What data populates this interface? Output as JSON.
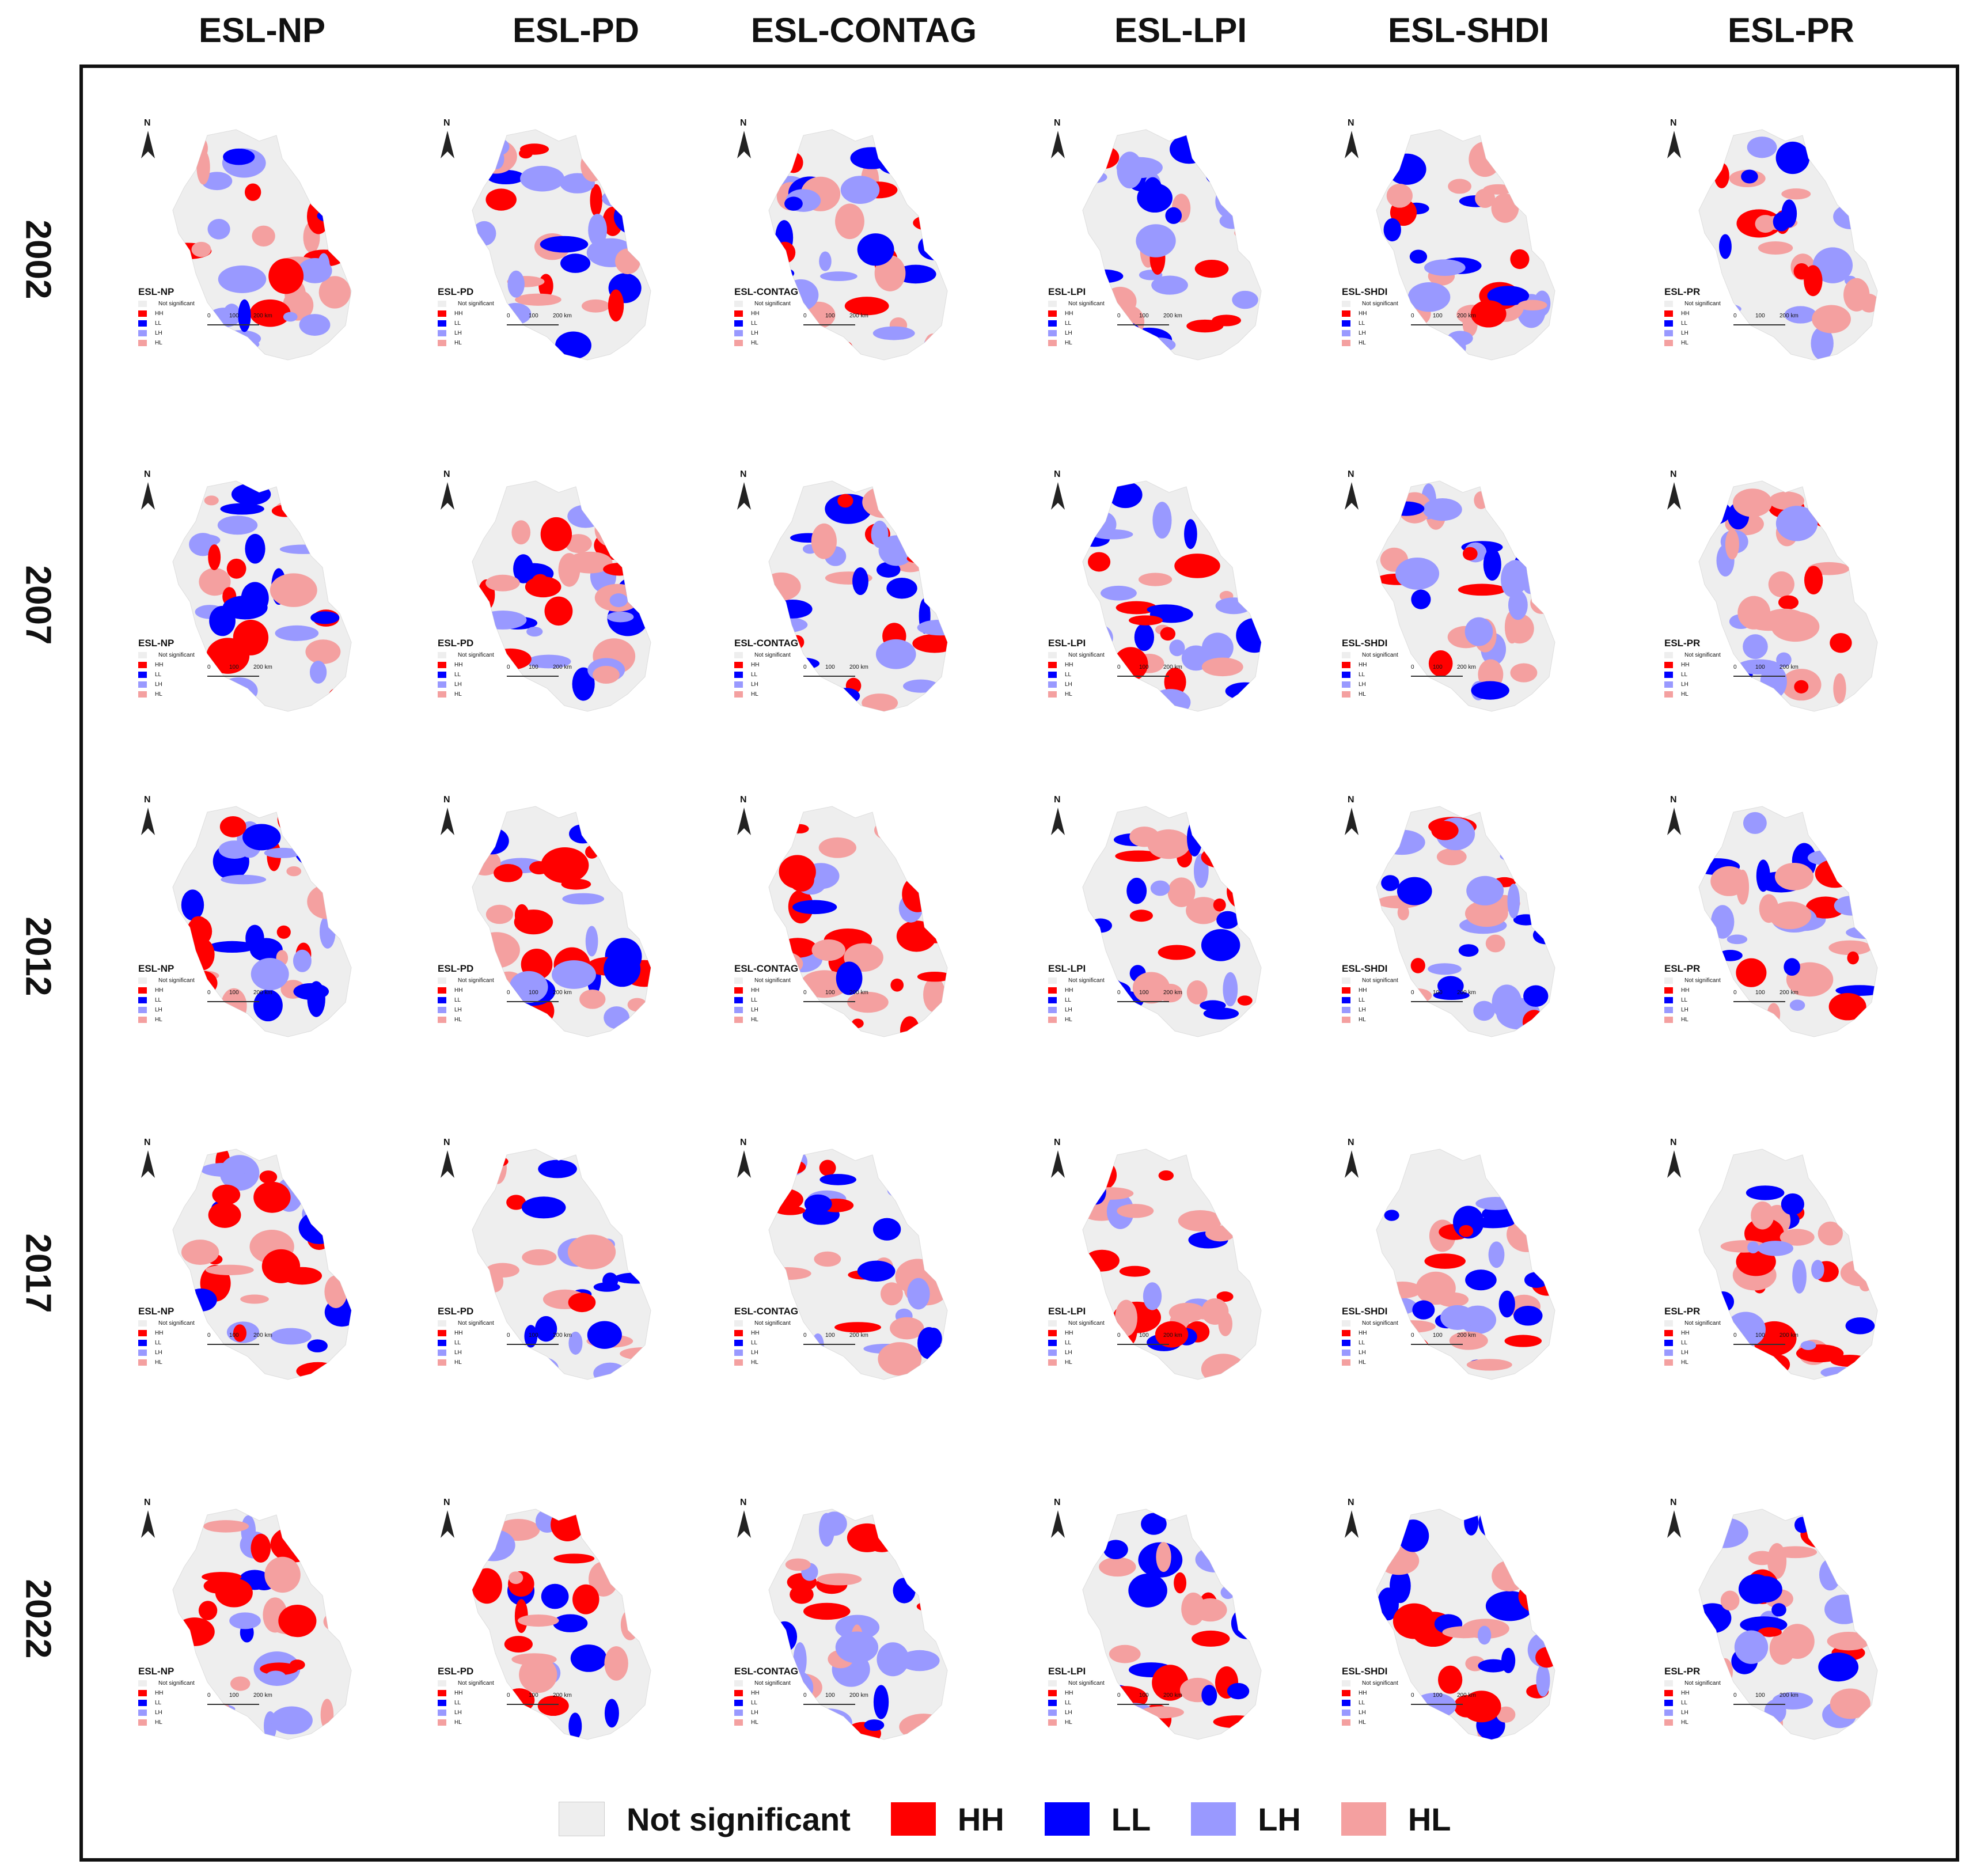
{
  "column_headers": [
    "ESL-NP",
    "ESL-PD",
    "ESL-CONTAG",
    "ESL-LPI",
    "ESL-SHDI",
    "ESL-PR"
  ],
  "row_labels": [
    "2002",
    "2007",
    "2012",
    "2017",
    "2022"
  ],
  "colors": {
    "not_significant": "#eeeeee",
    "HH": "#ff0000",
    "LL": "#0000ff",
    "LH": "#9999ff",
    "HL": "#f4a0a0"
  },
  "north_label": "N",
  "panel_legend": {
    "not_significant": "Not significant",
    "HH": "HH",
    "LL": "LL",
    "LH": "LH",
    "HL": "HL"
  },
  "scale_bar": {
    "ticks": [
      "0",
      "100",
      "200 km"
    ]
  },
  "main_legend": [
    {
      "key": "not_significant",
      "label": "Not significant"
    },
    {
      "key": "HH",
      "label": "HH"
    },
    {
      "key": "LL",
      "label": "LL"
    },
    {
      "key": "LH",
      "label": "LH"
    },
    {
      "key": "HL",
      "label": "HL"
    }
  ]
}
